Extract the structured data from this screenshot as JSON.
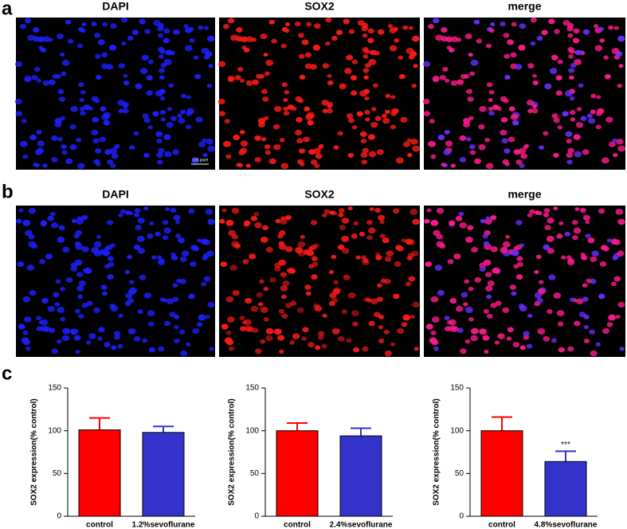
{
  "panels": [
    {
      "label": "a",
      "images": [
        "DAPI",
        "SOX2",
        "merge"
      ],
      "scale_bar": "100 pixel"
    },
    {
      "label": "b",
      "images": [
        "DAPI",
        "SOX2",
        "merge"
      ]
    },
    {
      "label": "c"
    }
  ],
  "chart_data": [
    {
      "type": "bar",
      "y_label": "SOX2 expression(% control)",
      "categories": [
        "control",
        "1.2%sevoflurane"
      ],
      "values": [
        101,
        98
      ],
      "errors": [
        14,
        7
      ],
      "colors": [
        "#ff0000",
        "#3333cc"
      ],
      "ylim": [
        0,
        150
      ],
      "yticks": [
        0,
        50,
        100,
        150
      ]
    },
    {
      "type": "bar",
      "y_label": "SOX2 expression(% control)",
      "categories": [
        "control",
        "2.4%sevoflurane"
      ],
      "values": [
        100,
        94
      ],
      "errors": [
        9,
        9
      ],
      "colors": [
        "#ff0000",
        "#3333cc"
      ],
      "ylim": [
        0,
        150
      ],
      "yticks": [
        0,
        50,
        100,
        150
      ]
    },
    {
      "type": "bar",
      "y_label": "SOX2 expression(% control)",
      "categories": [
        "control",
        "4.8%sevoflurane"
      ],
      "values": [
        100,
        64
      ],
      "errors": [
        16,
        12
      ],
      "colors": [
        "#ff0000",
        "#3333cc"
      ],
      "ylim": [
        0,
        150
      ],
      "yticks": [
        0,
        50,
        100,
        150
      ],
      "annotation": "***"
    }
  ]
}
